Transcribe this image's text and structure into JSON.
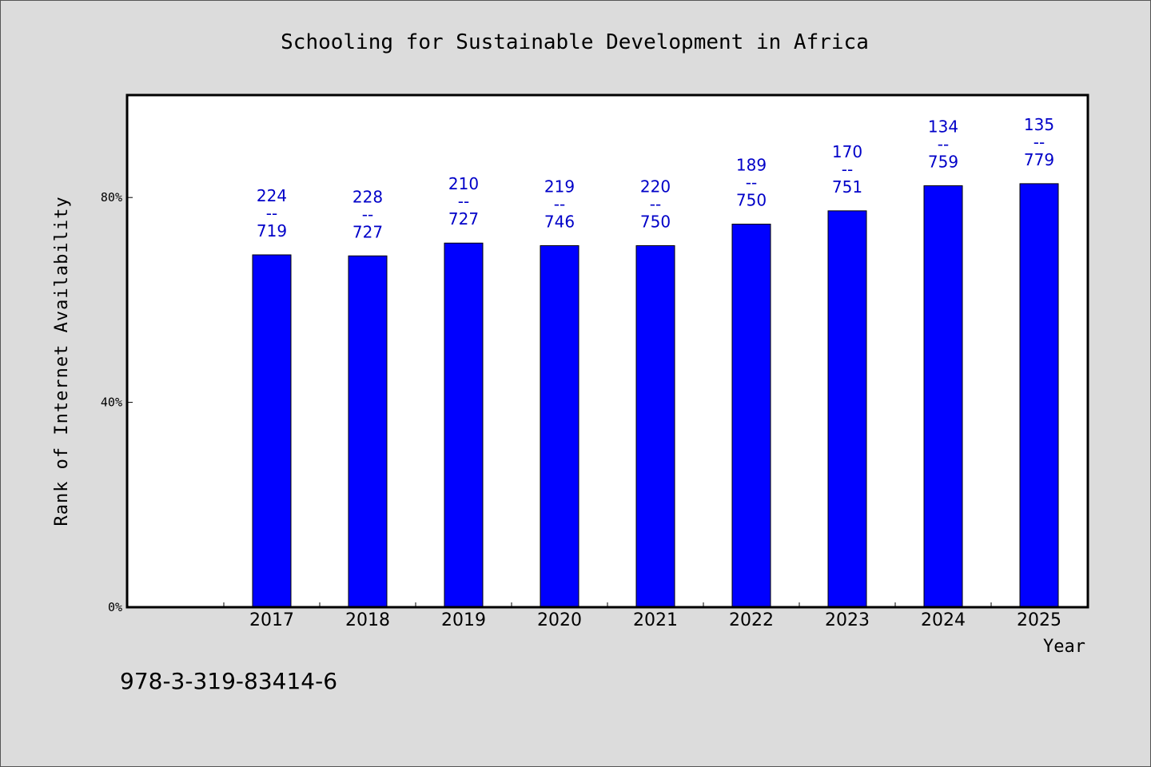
{
  "chart_data": {
    "type": "bar",
    "title": "Schooling for Sustainable Development in Africa",
    "xlabel": "Year",
    "ylabel": "Rank of Internet Availability",
    "categories": [
      "2017",
      "2018",
      "2019",
      "2020",
      "2021",
      "2022",
      "2023",
      "2024",
      "2025"
    ],
    "values": [
      68.8,
      68.6,
      71.1,
      70.6,
      70.6,
      74.8,
      77.4,
      82.3,
      82.7
    ],
    "labels_top": [
      "224",
      "228",
      "210",
      "219",
      "220",
      "189",
      "170",
      "134",
      "135"
    ],
    "labels_bottom": [
      "719",
      "727",
      "727",
      "746",
      "750",
      "750",
      "751",
      "759",
      "779"
    ],
    "label_separator": "--",
    "ylim": [
      0,
      100
    ],
    "yticks": [
      {
        "value": 0,
        "label": "0%"
      },
      {
        "value": 40,
        "label": "40%"
      },
      {
        "value": 80,
        "label": "80%"
      }
    ],
    "grid": false,
    "bar_color": "#0000ff",
    "label_color": "#0000c8"
  },
  "footnote": "978-3-319-83414-6"
}
